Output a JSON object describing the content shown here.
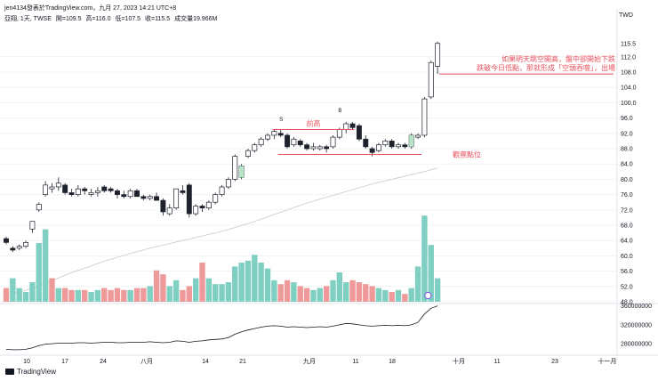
{
  "header": {
    "line1": "jen4134發表於TradingView.com，九月 27, 2023 14:21 UTC+8",
    "symbol": "亞翔, 1天, TWSE",
    "open": "開=109.5",
    "high": "高=116.0",
    "low": "低=107.5",
    "close": "收=115.5",
    "volume": "成交量19.966M"
  },
  "currency": "TWD",
  "brand": "TradingView",
  "colors": {
    "up": "#ffffff",
    "down": "#1e222d",
    "upVol": "#7fcfc3",
    "downVol": "#ef9a9a",
    "annotation": "#e8515e",
    "ma": "#c9c9c9"
  },
  "annotations": {
    "top_note_1": "如果明天跳空開高，盤中卻開始下跌",
    "top_note_2": "跌破今日低點，那就形成「空頭吞噬」，出場",
    "prev_high": "前高",
    "watch": "觀察點位",
    "s_mark": "S",
    "b_mark": "B"
  },
  "chart_data": {
    "type": "candlestick",
    "price_ticks": [
      48.0,
      52.0,
      56.0,
      60.0,
      64.0,
      68.0,
      72.0,
      76.0,
      80.0,
      84.0,
      88.0,
      92.0,
      96.0,
      100.0,
      104.0,
      108.0,
      112.0
    ],
    "last_price_label": "115.5",
    "volume_indicator_ticks": [
      "280000000",
      "320000000",
      "360000000"
    ],
    "x_ticks": [
      "10",
      "17",
      "24",
      "八月",
      "14",
      "21",
      "九月",
      "11",
      "18",
      "十月",
      "11",
      "23",
      "十一月"
    ],
    "candles": [
      {
        "o": 64.5,
        "h": 65.0,
        "l": 63.0,
        "c": 63.5
      },
      {
        "o": 62.0,
        "h": 62.5,
        "l": 61.0,
        "c": 61.5
      },
      {
        "o": 62.0,
        "h": 63.0,
        "l": 61.5,
        "c": 62.5
      },
      {
        "o": 62.5,
        "h": 64.0,
        "l": 62.0,
        "c": 63.5
      },
      {
        "o": 67.0,
        "h": 69.0,
        "l": 66.0,
        "c": 69.0
      },
      {
        "o": 72.0,
        "h": 74.0,
        "l": 71.5,
        "c": 73.5
      },
      {
        "o": 76.0,
        "h": 79.5,
        "l": 75.5,
        "c": 78.5
      },
      {
        "o": 77.5,
        "h": 79.0,
        "l": 76.5,
        "c": 78.0
      },
      {
        "o": 78.0,
        "h": 80.5,
        "l": 77.0,
        "c": 79.0
      },
      {
        "o": 78.5,
        "h": 79.0,
        "l": 76.0,
        "c": 76.5
      },
      {
        "o": 76.5,
        "h": 77.5,
        "l": 75.5,
        "c": 76.0
      },
      {
        "o": 76.0,
        "h": 78.5,
        "l": 75.5,
        "c": 77.5
      },
      {
        "o": 77.5,
        "h": 78.0,
        "l": 76.0,
        "c": 77.0
      },
      {
        "o": 76.0,
        "h": 77.5,
        "l": 75.5,
        "c": 76.5
      },
      {
        "o": 76.5,
        "h": 78.0,
        "l": 75.5,
        "c": 77.0
      },
      {
        "o": 78.0,
        "h": 78.5,
        "l": 76.5,
        "c": 77.0
      },
      {
        "o": 77.5,
        "h": 78.0,
        "l": 76.5,
        "c": 77.0
      },
      {
        "o": 77.0,
        "h": 77.5,
        "l": 75.0,
        "c": 76.0
      },
      {
        "o": 76.0,
        "h": 77.0,
        "l": 75.0,
        "c": 75.5
      },
      {
        "o": 75.5,
        "h": 77.5,
        "l": 75.0,
        "c": 77.0
      },
      {
        "o": 77.0,
        "h": 77.5,
        "l": 75.5,
        "c": 75.5
      },
      {
        "o": 75.5,
        "h": 76.0,
        "l": 74.5,
        "c": 75.0
      },
      {
        "o": 75.0,
        "h": 76.0,
        "l": 74.5,
        "c": 75.5
      },
      {
        "o": 75.5,
        "h": 76.5,
        "l": 74.5,
        "c": 74.5
      },
      {
        "o": 74.5,
        "h": 75.0,
        "l": 70.5,
        "c": 71.5
      },
      {
        "o": 71.0,
        "h": 73.5,
        "l": 70.5,
        "c": 72.5
      },
      {
        "o": 72.5,
        "h": 77.5,
        "l": 72.0,
        "c": 77.5
      },
      {
        "o": 77.0,
        "h": 78.5,
        "l": 76.0,
        "c": 76.5
      },
      {
        "o": 78.5,
        "h": 79.0,
        "l": 70.0,
        "c": 71.0
      },
      {
        "o": 71.0,
        "h": 73.5,
        "l": 70.5,
        "c": 73.0
      },
      {
        "o": 73.0,
        "h": 73.5,
        "l": 71.5,
        "c": 72.5
      },
      {
        "o": 72.5,
        "h": 74.5,
        "l": 72.0,
        "c": 74.0
      },
      {
        "o": 74.0,
        "h": 76.5,
        "l": 73.5,
        "c": 76.0
      },
      {
        "o": 76.0,
        "h": 78.5,
        "l": 75.5,
        "c": 78.0
      },
      {
        "o": 78.0,
        "h": 80.5,
        "l": 77.5,
        "c": 80.0
      },
      {
        "o": 80.0,
        "h": 86.5,
        "l": 79.5,
        "c": 86.0
      },
      {
        "o": 80.5,
        "h": 84.0,
        "l": 80.0,
        "c": 83.5
      },
      {
        "o": 86.0,
        "h": 88.0,
        "l": 85.5,
        "c": 87.5
      },
      {
        "o": 87.5,
        "h": 89.5,
        "l": 87.0,
        "c": 89.0
      },
      {
        "o": 89.0,
        "h": 91.0,
        "l": 88.5,
        "c": 90.5
      },
      {
        "o": 90.5,
        "h": 92.0,
        "l": 90.0,
        "c": 91.5
      },
      {
        "o": 91.5,
        "h": 93.0,
        "l": 90.5,
        "c": 92.5
      },
      {
        "o": 92.0,
        "h": 93.0,
        "l": 91.0,
        "c": 91.5
      },
      {
        "o": 91.5,
        "h": 92.0,
        "l": 88.0,
        "c": 88.5
      },
      {
        "o": 89.0,
        "h": 91.0,
        "l": 88.5,
        "c": 90.5
      },
      {
        "o": 90.0,
        "h": 90.5,
        "l": 88.5,
        "c": 89.0
      },
      {
        "o": 89.0,
        "h": 89.5,
        "l": 87.5,
        "c": 88.0
      },
      {
        "o": 88.0,
        "h": 89.5,
        "l": 87.5,
        "c": 88.5
      },
      {
        "o": 88.0,
        "h": 89.0,
        "l": 87.5,
        "c": 88.5
      },
      {
        "o": 88.5,
        "h": 89.0,
        "l": 87.0,
        "c": 88.0
      },
      {
        "o": 88.5,
        "h": 91.5,
        "l": 88.0,
        "c": 91.0
      },
      {
        "o": 91.0,
        "h": 93.5,
        "l": 90.5,
        "c": 93.0
      },
      {
        "o": 93.0,
        "h": 95.0,
        "l": 92.0,
        "c": 94.5
      },
      {
        "o": 94.5,
        "h": 95.0,
        "l": 93.0,
        "c": 93.5
      },
      {
        "o": 94.0,
        "h": 94.5,
        "l": 90.0,
        "c": 90.5
      },
      {
        "o": 90.5,
        "h": 91.5,
        "l": 88.0,
        "c": 88.5
      },
      {
        "o": 88.0,
        "h": 88.5,
        "l": 86.0,
        "c": 87.0
      },
      {
        "o": 87.5,
        "h": 89.5,
        "l": 87.0,
        "c": 89.0
      },
      {
        "o": 89.0,
        "h": 90.5,
        "l": 88.5,
        "c": 90.0
      },
      {
        "o": 90.0,
        "h": 90.5,
        "l": 88.0,
        "c": 88.5
      },
      {
        "o": 88.5,
        "h": 89.5,
        "l": 88.0,
        "c": 89.0
      },
      {
        "o": 89.0,
        "h": 89.5,
        "l": 88.0,
        "c": 88.5
      },
      {
        "o": 88.5,
        "h": 92.0,
        "l": 88.0,
        "c": 91.5
      },
      {
        "o": 91.0,
        "h": 92.0,
        "l": 90.5,
        "c": 91.5
      },
      {
        "o": 91.5,
        "h": 101.5,
        "l": 91.0,
        "c": 101.0
      },
      {
        "o": 101.5,
        "h": 111.0,
        "l": 101.0,
        "c": 110.5
      },
      {
        "o": 109.5,
        "h": 116.0,
        "l": 107.5,
        "c": 115.5
      }
    ],
    "volumes": [
      0.35,
      0.6,
      0.35,
      0.25,
      0.5,
      1.5,
      1.85,
      0.6,
      0.35,
      0.35,
      0.3,
      0.3,
      0.3,
      0.25,
      0.3,
      0.35,
      0.3,
      0.35,
      0.3,
      0.3,
      0.35,
      0.35,
      0.4,
      0.8,
      0.7,
      0.4,
      0.55,
      0.3,
      0.4,
      0.6,
      1.0,
      0.6,
      0.45,
      0.45,
      0.5,
      0.9,
      1.0,
      1.05,
      1.2,
      1.0,
      0.85,
      0.55,
      0.45,
      0.55,
      0.5,
      0.4,
      0.35,
      0.3,
      0.35,
      0.4,
      0.55,
      0.75,
      0.5,
      0.55,
      0.5,
      0.45,
      0.4,
      0.35,
      0.3,
      0.25,
      0.3,
      0.2,
      0.35,
      0.9,
      2.2,
      1.45,
      0.6
    ],
    "volume_up": [
      false,
      true,
      true,
      true,
      true,
      true,
      true,
      false,
      true,
      false,
      false,
      true,
      false,
      true,
      true,
      false,
      false,
      false,
      false,
      true,
      false,
      false,
      true,
      false,
      false,
      true,
      true,
      false,
      false,
      true,
      false,
      true,
      true,
      true,
      true,
      true,
      true,
      true,
      true,
      true,
      true,
      true,
      false,
      false,
      true,
      false,
      false,
      true,
      true,
      false,
      true,
      true,
      true,
      false,
      false,
      false,
      false,
      true,
      true,
      false,
      true,
      false,
      true,
      true,
      true,
      true,
      true
    ],
    "ma": [
      50,
      50.3,
      50.6,
      51,
      51.5,
      52.1,
      52.8,
      53.5,
      54.2,
      54.9,
      55.6,
      56.2,
      56.8,
      57.4,
      58,
      58.6,
      59.1,
      59.6,
      60.1,
      60.6,
      61.1,
      61.5,
      62,
      62.4,
      62.8,
      63.2,
      63.6,
      64,
      64.4,
      64.8,
      65.2,
      65.6,
      66,
      66.4,
      66.9,
      67.4,
      67.9,
      68.4,
      69,
      69.6,
      70.2,
      70.8,
      71.4,
      72,
      72.6,
      73.2,
      73.8,
      74.3,
      74.8,
      75.3,
      75.8,
      76.3,
      76.8,
      77.3,
      77.8,
      78.3,
      78.8,
      79.2,
      79.6,
      80,
      80.4,
      80.8,
      81.2,
      81.6,
      82,
      82.5,
      83.0
    ],
    "indicator": [
      268,
      267,
      267,
      268,
      271,
      276,
      279,
      280,
      281,
      281,
      281,
      282,
      282,
      281,
      282,
      283,
      283,
      282,
      282,
      283,
      283,
      283,
      284,
      283,
      282,
      283,
      286,
      285,
      283,
      285,
      286,
      288,
      289,
      290,
      293,
      300,
      305,
      309,
      312,
      315,
      317,
      318,
      317,
      315,
      316,
      315,
      314,
      315,
      316,
      315,
      317,
      320,
      323,
      322,
      320,
      318,
      317,
      318,
      319,
      318,
      319,
      318,
      320,
      325,
      343,
      355,
      360
    ],
    "prev_high_price": 93.0,
    "watch_price": 86.5,
    "exit_price": 107.5
  }
}
